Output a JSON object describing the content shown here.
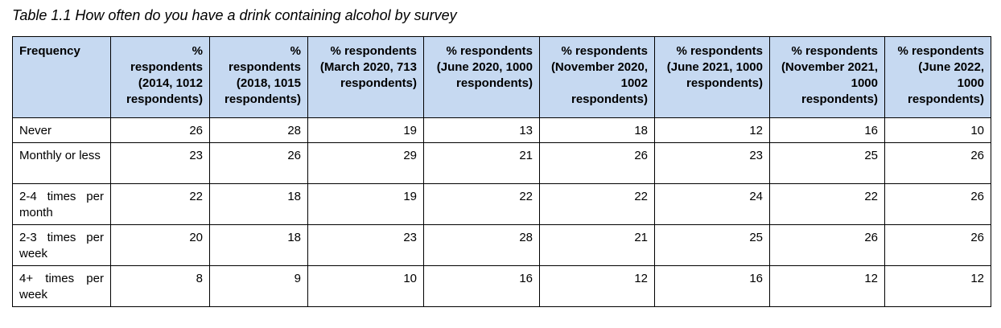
{
  "caption": "Table 1.1 How often do you have a drink containing alcohol by survey",
  "table": {
    "headers": [
      "Frequency",
      "% respondents (2014, 1012 respondents)",
      "% respondents (2018, 1015 respondents)",
      "% respondents (March 2020, 713 respondents)",
      "% respondents (June 2020, 1000 respondents)",
      "% respondents (November 2020, 1002 respondents)",
      "% respondents (June 2021, 1000 respondents)",
      "% respondents (November 2021, 1000 respondents)",
      "% respondents (June 2022, 1000 respondents)"
    ],
    "rows": [
      {
        "label": "Never",
        "values": [
          "26",
          "28",
          "19",
          "13",
          "18",
          "12",
          "16",
          "10"
        ]
      },
      {
        "label": "Monthly or less",
        "values": [
          "23",
          "26",
          "29",
          "21",
          "26",
          "23",
          "25",
          "26"
        ]
      },
      {
        "label": "2-4 times per month",
        "values": [
          "22",
          "18",
          "19",
          "22",
          "22",
          "24",
          "22",
          "26"
        ]
      },
      {
        "label": "2-3 times per week",
        "values": [
          "20",
          "18",
          "23",
          "28",
          "21",
          "25",
          "26",
          "26"
        ]
      },
      {
        "label": "4+ times per week",
        "values": [
          "8",
          "9",
          "10",
          "16",
          "12",
          "16",
          "12",
          "12"
        ]
      }
    ]
  },
  "colors": {
    "header_background": "#c6d9f1",
    "border": "#000000"
  }
}
